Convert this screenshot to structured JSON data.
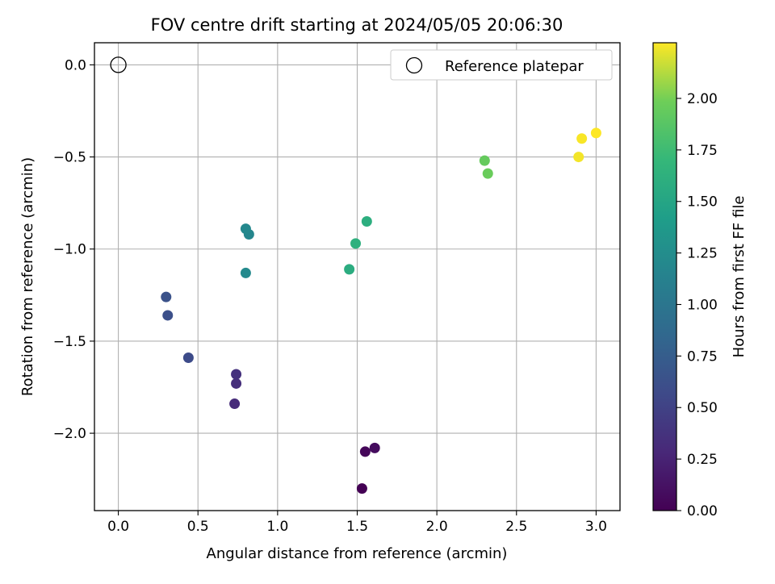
{
  "chart_data": {
    "type": "scatter",
    "title": "FOV centre drift starting at 2024/05/05 20:06:30",
    "xlabel": "Angular distance from reference (arcmin)",
    "ylabel": "Rotation from reference (arcmin)",
    "xlim": [
      -0.15,
      3.15
    ],
    "ylim": [
      -2.42,
      0.12
    ],
    "xticks": [
      "0.0",
      "0.5",
      "1.0",
      "1.5",
      "2.0",
      "2.5",
      "3.0"
    ],
    "yticks": [
      "0.0",
      "−0.5",
      "−1.0",
      "−1.5",
      "−2.0"
    ],
    "grid": true,
    "legend": {
      "placement": "upper right",
      "label": "Reference platepar"
    },
    "reference_point": {
      "x": 0.0,
      "y": 0.0
    },
    "colorbar": {
      "label": "Hours from first FF file",
      "range": [
        0.0,
        2.27
      ],
      "ticks": [
        "0.00",
        "0.25",
        "0.50",
        "0.75",
        "1.00",
        "1.25",
        "1.50",
        "1.75",
        "2.00"
      ],
      "colormap": "viridis"
    },
    "series": [
      {
        "points": [
          {
            "x": 1.53,
            "y": -2.3,
            "c": 0.0
          },
          {
            "x": 1.55,
            "y": -2.1,
            "c": 0.04
          },
          {
            "x": 1.61,
            "y": -2.08,
            "c": 0.08
          },
          {
            "x": 0.73,
            "y": -1.84,
            "c": 0.32
          },
          {
            "x": 0.74,
            "y": -1.73,
            "c": 0.34
          },
          {
            "x": 0.74,
            "y": -1.68,
            "c": 0.36
          },
          {
            "x": 0.44,
            "y": -1.59,
            "c": 0.58
          },
          {
            "x": 0.31,
            "y": -1.36,
            "c": 0.62
          },
          {
            "x": 0.3,
            "y": -1.26,
            "c": 0.64
          },
          {
            "x": 0.8,
            "y": -1.13,
            "c": 1.22
          },
          {
            "x": 0.82,
            "y": -0.92,
            "c": 1.18
          },
          {
            "x": 0.8,
            "y": -0.89,
            "c": 1.2
          },
          {
            "x": 1.45,
            "y": -1.11,
            "c": 1.58
          },
          {
            "x": 1.49,
            "y": -0.97,
            "c": 1.62
          },
          {
            "x": 1.56,
            "y": -0.85,
            "c": 1.6
          },
          {
            "x": 2.3,
            "y": -0.52,
            "c": 1.94
          },
          {
            "x": 2.32,
            "y": -0.59,
            "c": 1.96
          },
          {
            "x": 2.89,
            "y": -0.5,
            "c": 2.25
          },
          {
            "x": 2.91,
            "y": -0.4,
            "c": 2.26
          },
          {
            "x": 3.0,
            "y": -0.37,
            "c": 2.27
          }
        ]
      }
    ]
  }
}
